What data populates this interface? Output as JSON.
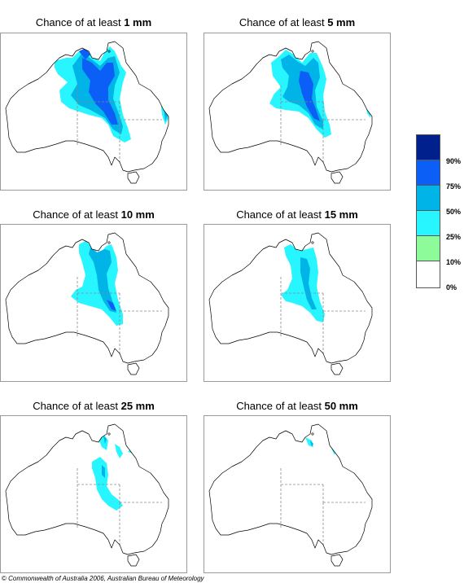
{
  "panels": [
    {
      "prefix": "Chance of at least ",
      "amount": "1 mm"
    },
    {
      "prefix": "Chance of at least ",
      "amount": "5 mm"
    },
    {
      "prefix": "Chance of at least ",
      "amount": "10 mm"
    },
    {
      "prefix": "Chance of at least ",
      "amount": "15 mm"
    },
    {
      "prefix": "Chance of at least ",
      "amount": "25 mm"
    },
    {
      "prefix": "Chance of at least ",
      "amount": "50 mm"
    }
  ],
  "legend": {
    "labels": [
      "90%",
      "75%",
      "50%",
      "25%",
      "10%",
      "0%"
    ],
    "colors": [
      "#00208e",
      "#0b5ff7",
      "#00b4e8",
      "#27f5ff",
      "#8efb9a",
      "#ffffff"
    ]
  },
  "map_colors": {
    "coast": "#000000",
    "border": "#8a8a8a"
  },
  "copyright": {
    "symbol": "©",
    "text": " Commonwealth of Australia 2006, Australian Bureau of Meteorology"
  }
}
